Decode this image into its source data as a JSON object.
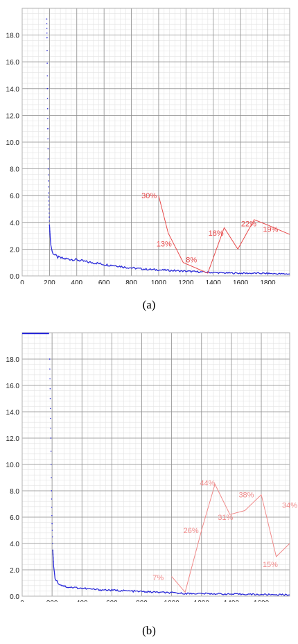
{
  "captions": {
    "a": "(a)",
    "b": "(b)"
  },
  "chart_data": [
    {
      "type": "line",
      "panel": "a",
      "xlim": [
        0,
        1960
      ],
      "ylim": [
        0,
        20
      ],
      "x_ticks": [
        0,
        200,
        400,
        600,
        800,
        1000,
        1200,
        1400,
        1600,
        1800
      ],
      "x_tick_labels": [
        "0",
        "200",
        "400",
        "600",
        "800",
        "1000",
        "1200",
        "1400",
        "1600",
        "1800"
      ],
      "y_ticks": [
        0,
        2,
        4,
        6,
        8,
        10,
        12,
        14,
        16,
        18
      ],
      "y_tick_labels": [
        "0.0",
        "2.0",
        "4.0",
        "6.0",
        "8.0",
        "10.0",
        "12.0",
        "14.0",
        "16.0",
        "18.0"
      ],
      "grid": true,
      "colors": {
        "series": "#2b2bd9",
        "annotation": "#e8494a",
        "grid": "#c8c8c8",
        "grid_major": "#8c8c8c"
      },
      "series": [
        {
          "style": "dotted-then-line",
          "x": [
            180,
            182,
            185,
            188,
            191,
            194,
            197,
            200,
            205,
            210,
            220,
            240,
            260,
            300,
            350,
            400,
            450,
            500,
            550,
            600,
            650,
            700,
            750,
            800,
            900,
            1000,
            1100,
            1200,
            1300,
            1400,
            1500,
            1600,
            1700,
            1800,
            1900,
            1960
          ],
          "y": [
            19.2,
            17.8,
            14.0,
            11.0,
            8.0,
            6.2,
            5.0,
            3.8,
            2.9,
            2.3,
            1.8,
            1.55,
            1.4,
            1.3,
            1.25,
            1.2,
            1.1,
            1.0,
            0.95,
            0.85,
            0.8,
            0.75,
            0.65,
            0.6,
            0.5,
            0.45,
            0.4,
            0.35,
            0.3,
            0.25,
            0.22,
            0.2,
            0.2,
            0.18,
            0.15,
            0.15
          ]
        }
      ],
      "annotation_line": {
        "x": [
          1000,
          1070,
          1180,
          1360,
          1480,
          1580,
          1700,
          1800,
          1960
        ],
        "y": [
          6.0,
          3.2,
          1.0,
          0.2,
          3.6,
          2.0,
          4.2,
          3.8,
          3.1
        ]
      },
      "annotations": [
        {
          "text": "30%",
          "x": 930,
          "y": 5.8
        },
        {
          "text": "13%",
          "x": 1040,
          "y": 2.2
        },
        {
          "text": "8%",
          "x": 1240,
          "y": 1.0
        },
        {
          "text": "18%",
          "x": 1420,
          "y": 3.0
        },
        {
          "text": "22%",
          "x": 1660,
          "y": 3.7
        },
        {
          "text": "19%",
          "x": 1820,
          "y": 3.3
        }
      ]
    },
    {
      "type": "line",
      "panel": "b",
      "xlim": [
        0,
        1790
      ],
      "ylim": [
        0,
        20
      ],
      "x_ticks": [
        0,
        200,
        400,
        600,
        800,
        1000,
        1200,
        1400,
        1600
      ],
      "x_tick_labels": [
        "0",
        "200",
        "400",
        "600",
        "800",
        "1000",
        "1200",
        "1400",
        "1600"
      ],
      "y_ticks": [
        0,
        2,
        4,
        6,
        8,
        10,
        12,
        14,
        16,
        18
      ],
      "y_tick_labels": [
        "0.0",
        "2.0",
        "4.0",
        "6.0",
        "8.0",
        "10.0",
        "12.0",
        "14.0",
        "16.0",
        "18.0"
      ],
      "grid": true,
      "colors": {
        "series": "#2b2bd9",
        "annotation": "#f08a8a",
        "grid": "#c8c8c8",
        "grid_major": "#8c8c8c"
      },
      "series": [
        {
          "style": "flat-then-dotted-then-line",
          "x": [
            0,
            50,
            100,
            150,
            180,
            184,
            188,
            192,
            196,
            200,
            205,
            210,
            220,
            240,
            260,
            300,
            350,
            400,
            450,
            500,
            600,
            700,
            800,
            900,
            1000,
            1100,
            1200,
            1300,
            1400,
            1500,
            1600,
            1700,
            1790
          ],
          "y": [
            20,
            20,
            20,
            20,
            20,
            18.0,
            15.0,
            12.0,
            8.0,
            5.5,
            3.5,
            2.3,
            1.4,
            1.0,
            0.85,
            0.7,
            0.65,
            0.6,
            0.55,
            0.5,
            0.45,
            0.4,
            0.35,
            0.3,
            0.25,
            0.2,
            0.2,
            0.18,
            0.15,
            0.15,
            0.12,
            0.12,
            0.1
          ]
        }
      ],
      "annotation_line": {
        "x": [
          1000,
          1090,
          1200,
          1290,
          1390,
          1490,
          1600,
          1700,
          1790
        ],
        "y": [
          1.5,
          0.3,
          5.0,
          8.5,
          6.2,
          6.5,
          7.7,
          3.0,
          4.0
        ]
      },
      "annotation_line_tail": {
        "x": [
          1790,
          1890
        ],
        "y": [
          4.0,
          6.8
        ]
      },
      "annotations": [
        {
          "text": "7%",
          "x": 910,
          "y": 1.2
        },
        {
          "text": "26%",
          "x": 1130,
          "y": 4.8
        },
        {
          "text": "44%",
          "x": 1240,
          "y": 8.4
        },
        {
          "text": "31%",
          "x": 1360,
          "y": 5.8
        },
        {
          "text": "38%",
          "x": 1500,
          "y": 7.5
        },
        {
          "text": "15%",
          "x": 1660,
          "y": 2.2
        },
        {
          "text": "34%",
          "x": 1790,
          "y": 6.7
        }
      ]
    }
  ]
}
